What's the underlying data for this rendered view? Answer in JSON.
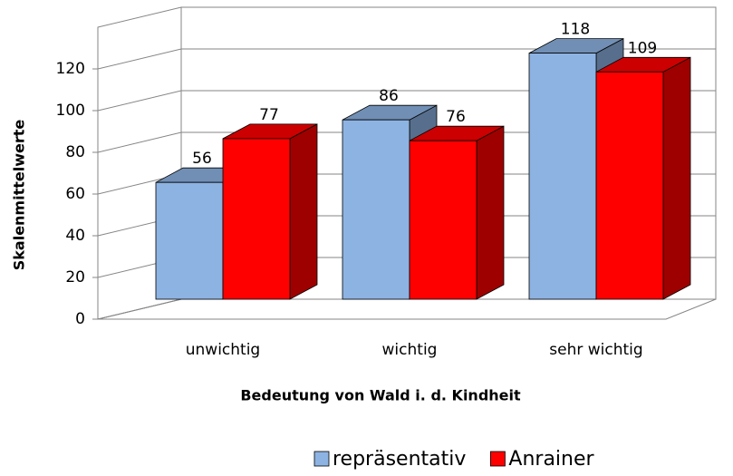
{
  "chart_data": {
    "type": "bar3d",
    "y_label": "Skalenmittelwerte",
    "x_label": "Bedeutung von Wald i. d. Kindheit",
    "categories": [
      "unwichtig",
      "wichtig",
      "sehr wichtig"
    ],
    "series": [
      {
        "name": "repräsentativ",
        "color": "#8db3e2",
        "values": [
          56,
          86,
          118
        ]
      },
      {
        "name": "Anrainer",
        "color": "#ff0000",
        "values": [
          77,
          76,
          109
        ]
      }
    ],
    "ylim": [
      0,
      140
    ],
    "yticks": [
      0,
      20,
      40,
      60,
      80,
      100,
      120
    ],
    "grid": true,
    "legend": "bottom"
  }
}
